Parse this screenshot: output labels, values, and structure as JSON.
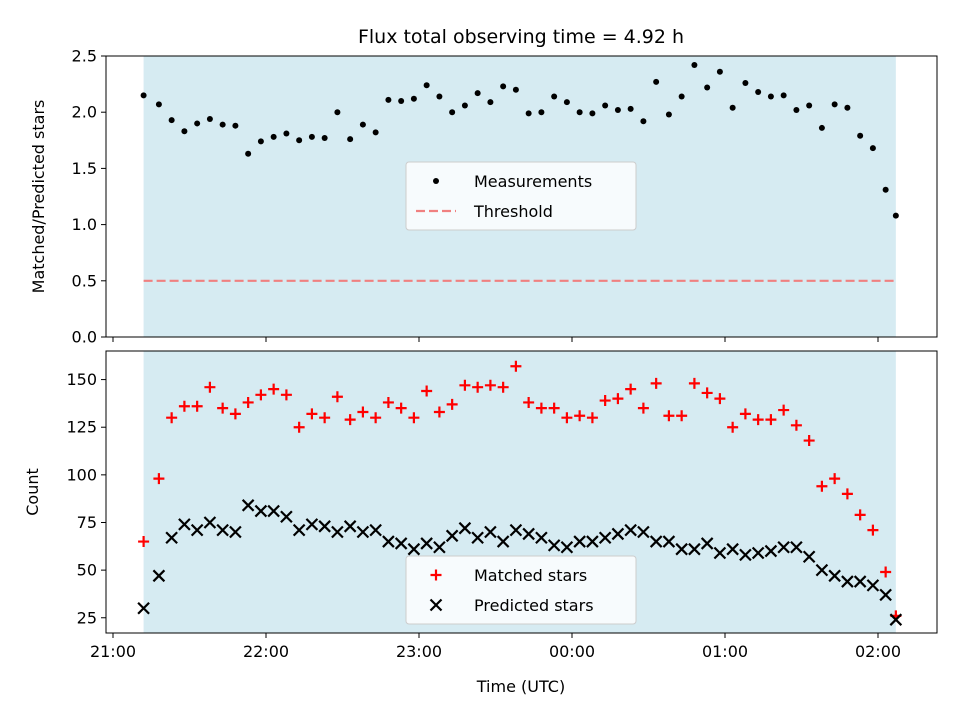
{
  "chart_data": [
    {
      "type": "scatter",
      "title": "Flux total observing time = 4.92 h",
      "ylabel": "Matched/Predicted stars",
      "ylim": [
        0,
        2.5
      ],
      "yticks": [
        "0.0",
        "0.5",
        "1.0",
        "1.5",
        "2.0",
        "2.5"
      ],
      "shaded_span": {
        "from": "21:12",
        "to": "02:07",
        "color": "#add8e6"
      },
      "threshold": {
        "name": "Threshold",
        "value": 0.5,
        "color": "#f08080",
        "style": "dashed"
      },
      "legend": {
        "placement": "center",
        "entries": [
          "Measurements",
          "Threshold"
        ]
      },
      "series": [
        {
          "name": "Measurements",
          "marker": "dot",
          "color": "#000000",
          "x": [
            "21:12",
            "21:18",
            "21:23",
            "21:28",
            "21:33",
            "21:38",
            "21:43",
            "21:48",
            "21:53",
            "21:58",
            "22:03",
            "22:08",
            "22:13",
            "22:18",
            "22:23",
            "22:28",
            "22:33",
            "22:38",
            "22:43",
            "22:48",
            "22:53",
            "22:58",
            "23:03",
            "23:08",
            "23:13",
            "23:18",
            "23:23",
            "23:28",
            "23:33",
            "23:38",
            "23:43",
            "23:48",
            "23:53",
            "23:58",
            "00:03",
            "00:08",
            "00:13",
            "00:18",
            "00:23",
            "00:28",
            "00:33",
            "00:38",
            "00:43",
            "00:48",
            "00:53",
            "00:58",
            "01:03",
            "01:08",
            "01:13",
            "01:18",
            "01:23",
            "01:28",
            "01:33",
            "01:38",
            "01:43",
            "01:48",
            "01:53",
            "01:58",
            "02:03",
            "02:07"
          ],
          "values": [
            2.15,
            2.07,
            1.93,
            1.83,
            1.9,
            1.94,
            1.89,
            1.88,
            1.63,
            1.74,
            1.78,
            1.81,
            1.75,
            1.78,
            1.77,
            2.0,
            1.76,
            1.89,
            1.82,
            2.11,
            2.1,
            2.12,
            2.24,
            2.14,
            2.0,
            2.06,
            2.17,
            2.09,
            2.23,
            2.2,
            1.99,
            2.0,
            2.14,
            2.09,
            2.0,
            1.99,
            2.06,
            2.02,
            2.03,
            1.92,
            2.27,
            1.98,
            2.14,
            2.42,
            2.22,
            2.36,
            2.04,
            2.26,
            2.18,
            2.14,
            2.15,
            2.02,
            2.06,
            1.86,
            2.07,
            2.04,
            1.79,
            1.68,
            1.31,
            1.08
          ]
        }
      ]
    },
    {
      "type": "scatter",
      "xlabel": "Time (UTC)",
      "ylabel": "Count",
      "ylim": [
        17,
        165
      ],
      "yticks": [
        "25",
        "50",
        "75",
        "100",
        "125",
        "150"
      ],
      "xticks": [
        "21:00",
        "22:00",
        "23:00",
        "00:00",
        "01:00",
        "02:00"
      ],
      "shaded_span": {
        "from": "21:12",
        "to": "02:07",
        "color": "#add8e6"
      },
      "legend": {
        "placement": "bottom-center",
        "entries": [
          "Matched stars",
          "Predicted stars"
        ]
      },
      "series": [
        {
          "name": "Matched stars",
          "marker": "plus",
          "color": "#ff0000",
          "x": [
            "21:12",
            "21:18",
            "21:23",
            "21:28",
            "21:33",
            "21:38",
            "21:43",
            "21:48",
            "21:53",
            "21:58",
            "22:03",
            "22:08",
            "22:13",
            "22:18",
            "22:23",
            "22:28",
            "22:33",
            "22:38",
            "22:43",
            "22:48",
            "22:53",
            "22:58",
            "23:03",
            "23:08",
            "23:13",
            "23:18",
            "23:23",
            "23:28",
            "23:33",
            "23:38",
            "23:43",
            "23:48",
            "23:53",
            "23:58",
            "00:03",
            "00:08",
            "00:13",
            "00:18",
            "00:23",
            "00:28",
            "00:33",
            "00:38",
            "00:43",
            "00:48",
            "00:53",
            "00:58",
            "01:03",
            "01:08",
            "01:13",
            "01:18",
            "01:23",
            "01:28",
            "01:33",
            "01:38",
            "01:43",
            "01:48",
            "01:53",
            "01:58",
            "02:03",
            "02:07"
          ],
          "values": [
            65,
            98,
            130,
            136,
            136,
            146,
            135,
            132,
            138,
            142,
            145,
            142,
            125,
            132,
            130,
            141,
            129,
            133,
            130,
            138,
            135,
            130,
            144,
            133,
            137,
            147,
            146,
            147,
            146,
            157,
            138,
            135,
            135,
            130,
            131,
            130,
            139,
            140,
            145,
            135,
            148,
            131,
            131,
            148,
            143,
            140,
            125,
            132,
            129,
            129,
            134,
            126,
            118,
            94,
            98,
            90,
            79,
            71,
            49,
            26
          ]
        },
        {
          "name": "Predicted stars",
          "marker": "x",
          "color": "#000000",
          "x": [
            "21:12",
            "21:18",
            "21:23",
            "21:28",
            "21:33",
            "21:38",
            "21:43",
            "21:48",
            "21:53",
            "21:58",
            "22:03",
            "22:08",
            "22:13",
            "22:18",
            "22:23",
            "22:28",
            "22:33",
            "22:38",
            "22:43",
            "22:48",
            "22:53",
            "22:58",
            "23:03",
            "23:08",
            "23:13",
            "23:18",
            "23:23",
            "23:28",
            "23:33",
            "23:38",
            "23:43",
            "23:48",
            "23:53",
            "23:58",
            "00:03",
            "00:08",
            "00:13",
            "00:18",
            "00:23",
            "00:28",
            "00:33",
            "00:38",
            "00:43",
            "00:48",
            "00:53",
            "00:58",
            "01:03",
            "01:08",
            "01:13",
            "01:18",
            "01:23",
            "01:28",
            "01:33",
            "01:38",
            "01:43",
            "01:48",
            "01:53",
            "01:58",
            "02:03",
            "02:07"
          ],
          "values": [
            30,
            47,
            67,
            74,
            71,
            75,
            71,
            70,
            84,
            81,
            81,
            78,
            71,
            74,
            73,
            70,
            73,
            70,
            71,
            65,
            64,
            61,
            64,
            62,
            68,
            72,
            67,
            70,
            65,
            71,
            69,
            67,
            63,
            62,
            65,
            65,
            67,
            69,
            71,
            70,
            65,
            65,
            61,
            61,
            64,
            59,
            61,
            58,
            59,
            60,
            62,
            62,
            57,
            50,
            47,
            44,
            44,
            42,
            37,
            24
          ]
        }
      ]
    }
  ]
}
